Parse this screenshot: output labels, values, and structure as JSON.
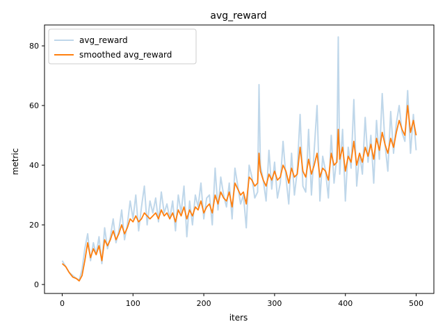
{
  "chart_data": {
    "type": "line",
    "title": "avg_reward",
    "xlabel": "iters",
    "ylabel": "metric",
    "xlim": [
      -25,
      525
    ],
    "ylim": [
      -3,
      87
    ],
    "xticks": [
      0,
      100,
      200,
      300,
      400,
      500
    ],
    "yticks": [
      0,
      20,
      40,
      60,
      80
    ],
    "grid": false,
    "legend_position": "upper-left",
    "series": [
      {
        "name": "avg_reward",
        "color": "#7fb0d5",
        "alpha": 0.5,
        "x": [
          0,
          5,
          10,
          15,
          20,
          24,
          28,
          32,
          36,
          40,
          44,
          48,
          52,
          56,
          60,
          64,
          68,
          72,
          76,
          80,
          84,
          88,
          92,
          96,
          100,
          104,
          108,
          112,
          116,
          120,
          124,
          128,
          132,
          136,
          140,
          144,
          148,
          152,
          156,
          160,
          164,
          168,
          172,
          176,
          180,
          184,
          188,
          192,
          196,
          200,
          204,
          208,
          212,
          216,
          220,
          224,
          228,
          232,
          236,
          240,
          244,
          248,
          252,
          256,
          260,
          264,
          268,
          272,
          276,
          278,
          280,
          284,
          288,
          292,
          296,
          300,
          304,
          308,
          312,
          316,
          320,
          324,
          328,
          332,
          336,
          340,
          344,
          348,
          352,
          356,
          360,
          364,
          368,
          372,
          376,
          380,
          384,
          388,
          390,
          392,
          396,
          400,
          404,
          408,
          412,
          416,
          420,
          424,
          428,
          432,
          436,
          440,
          444,
          448,
          452,
          456,
          460,
          464,
          468,
          472,
          476,
          480,
          484,
          488,
          492,
          496,
          500
        ],
        "y": [
          8,
          6,
          4,
          3,
          2,
          1.5,
          5,
          12,
          17,
          8,
          14,
          10,
          16,
          7,
          19,
          12,
          16,
          22,
          14,
          18,
          25,
          15,
          20,
          28,
          22,
          30,
          18,
          26,
          33,
          20,
          28,
          24,
          29,
          21,
          31,
          24,
          27,
          22,
          28,
          18,
          30,
          24,
          33,
          16,
          28,
          20,
          30,
          26,
          34,
          22,
          29,
          30,
          20,
          39,
          25,
          36,
          30,
          26,
          34,
          22,
          39,
          33,
          27,
          30,
          19,
          40,
          36,
          29,
          31,
          67,
          40,
          35,
          28,
          45,
          32,
          41,
          29,
          34,
          48,
          36,
          27,
          44,
          30,
          38,
          57,
          33,
          31,
          52,
          30,
          45,
          60,
          28,
          43,
          38,
          29,
          50,
          34,
          43,
          83,
          37,
          52,
          28,
          46,
          39,
          62,
          33,
          44,
          37,
          56,
          41,
          50,
          34,
          55,
          42,
          64,
          47,
          38,
          58,
          44,
          54,
          60,
          51,
          48,
          65,
          44,
          57,
          45
        ]
      },
      {
        "name": "smoothed avg_reward",
        "color": "#ff7f0e",
        "alpha": 1,
        "x": [
          0,
          5,
          10,
          15,
          20,
          24,
          28,
          32,
          36,
          40,
          44,
          48,
          52,
          56,
          60,
          64,
          68,
          72,
          76,
          80,
          84,
          88,
          92,
          96,
          100,
          104,
          108,
          112,
          116,
          120,
          124,
          128,
          132,
          136,
          140,
          144,
          148,
          152,
          156,
          160,
          164,
          168,
          172,
          176,
          180,
          184,
          188,
          192,
          196,
          200,
          204,
          208,
          212,
          216,
          220,
          224,
          228,
          232,
          236,
          240,
          244,
          248,
          252,
          256,
          260,
          264,
          268,
          272,
          276,
          278,
          280,
          284,
          288,
          292,
          296,
          300,
          304,
          308,
          312,
          316,
          320,
          324,
          328,
          332,
          336,
          340,
          344,
          348,
          352,
          356,
          360,
          364,
          368,
          372,
          376,
          380,
          384,
          388,
          390,
          392,
          396,
          400,
          404,
          408,
          412,
          416,
          420,
          424,
          428,
          432,
          436,
          440,
          444,
          448,
          452,
          456,
          460,
          464,
          468,
          472,
          476,
          480,
          484,
          488,
          492,
          496,
          500
        ],
        "y": [
          7,
          6,
          4,
          2.5,
          2,
          1.2,
          3,
          8,
          14,
          9,
          12,
          10,
          13,
          8,
          15,
          13,
          15,
          18,
          15,
          17,
          20,
          17,
          19,
          22,
          21,
          23,
          21,
          22,
          24,
          23,
          22,
          23,
          24,
          22,
          25,
          23,
          24,
          22,
          24,
          21,
          25,
          23,
          26,
          22,
          25,
          23,
          26,
          25,
          28,
          24,
          26,
          27,
          24,
          30,
          27,
          31,
          29,
          28,
          31,
          26,
          34,
          32,
          30,
          31,
          27,
          36,
          35,
          33,
          34,
          44,
          38,
          35,
          33,
          37,
          35,
          38,
          35,
          36,
          40,
          38,
          34,
          39,
          36,
          37,
          46,
          38,
          36,
          42,
          37,
          40,
          44,
          36,
          39,
          38,
          35,
          44,
          40,
          41,
          52,
          42,
          46,
          38,
          43,
          41,
          48,
          40,
          44,
          41,
          46,
          43,
          47,
          42,
          49,
          45,
          51,
          47,
          44,
          49,
          46,
          51,
          55,
          52,
          50,
          60,
          51,
          55,
          50
        ]
      }
    ]
  }
}
